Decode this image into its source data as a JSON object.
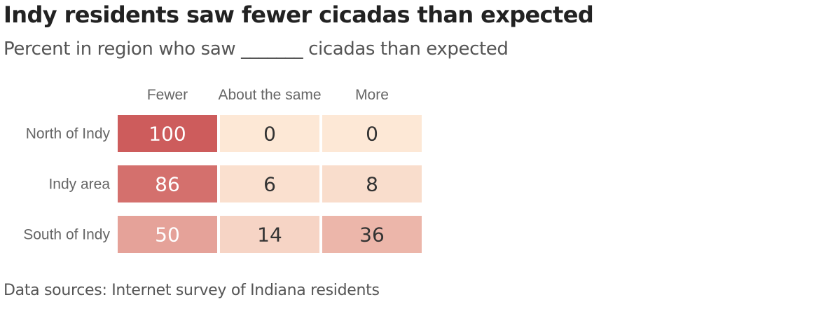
{
  "title": "Indy residents saw fewer cicadas than expected",
  "subtitle": "Percent in region who saw _______ cicadas than expected",
  "source": "Data sources: Internet survey of Indiana residents",
  "chart_data": {
    "type": "heatmap",
    "columns": [
      "Fewer",
      "About the same",
      "More"
    ],
    "rows": [
      "North of Indy",
      "Indy area",
      "South of Indy"
    ],
    "values": [
      [
        100,
        0,
        0
      ],
      [
        86,
        6,
        8
      ],
      [
        50,
        14,
        36
      ]
    ],
    "value_range": [
      0,
      100
    ],
    "colors": {
      "low": "#fde8d6",
      "high": "#cd5c5c",
      "text_light": "#ffffff",
      "text_dark": "#333333",
      "header_text": "#666666"
    }
  }
}
